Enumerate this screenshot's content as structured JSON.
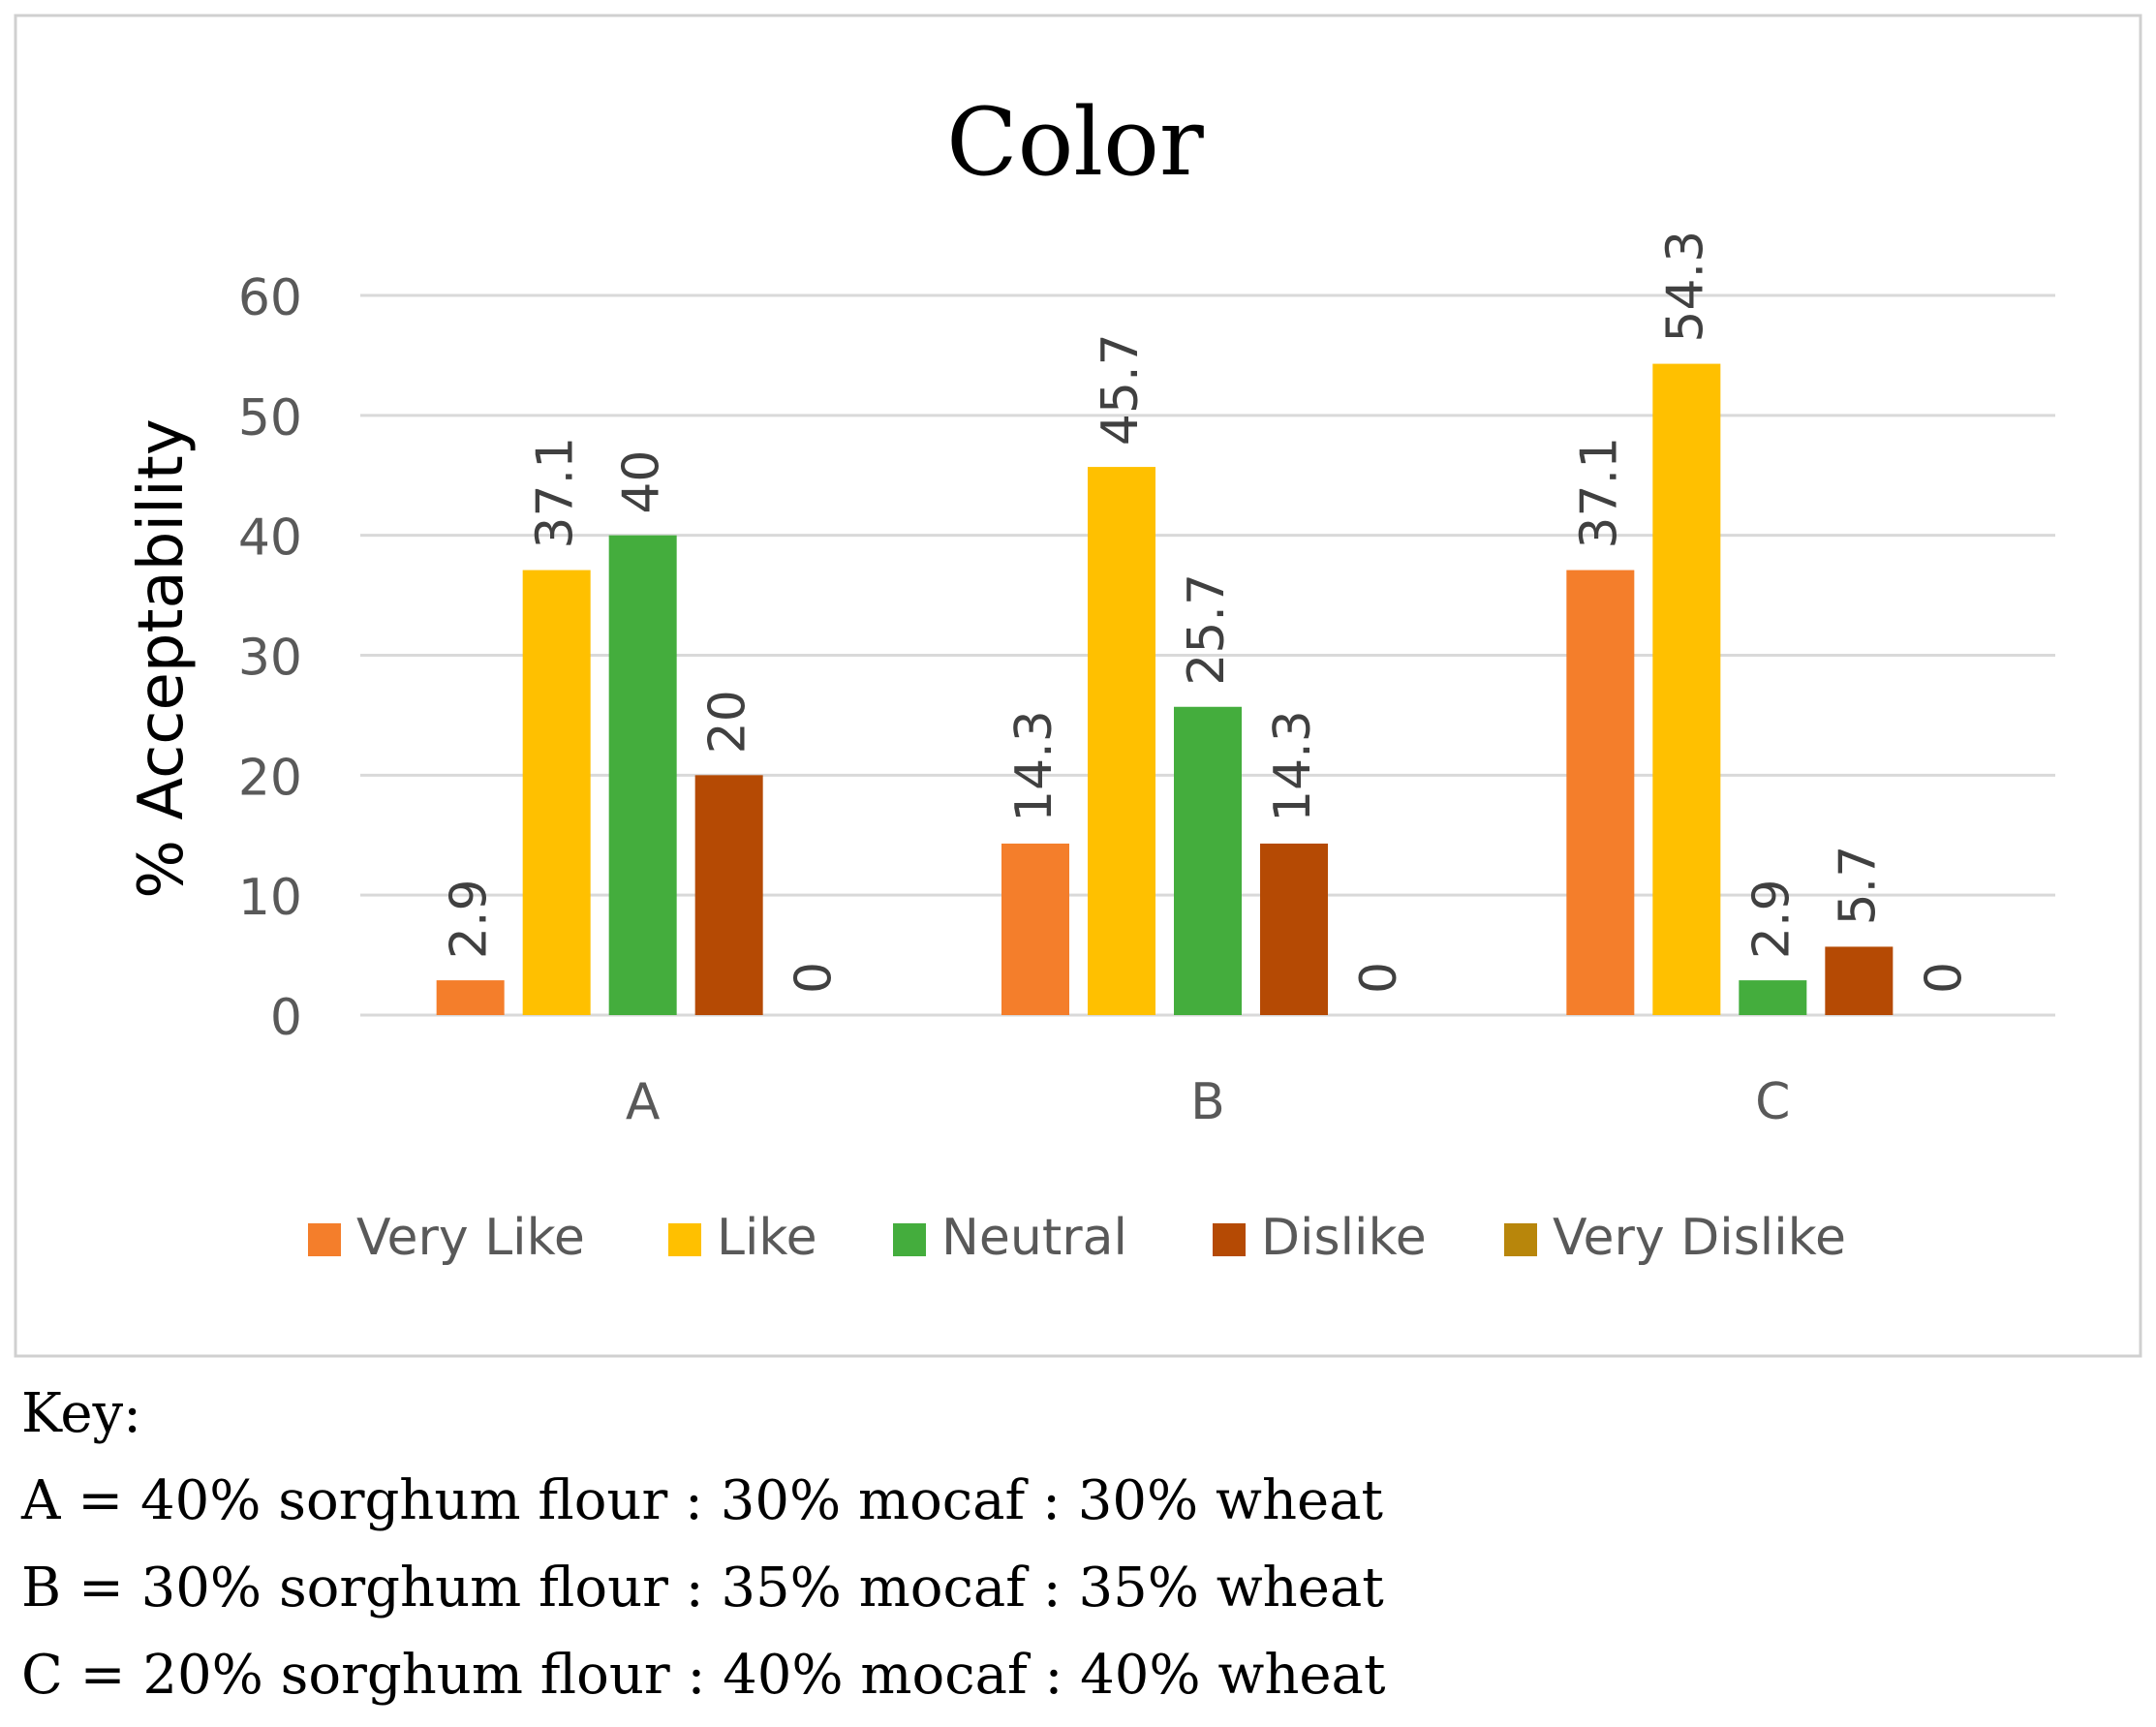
{
  "chart_data": {
    "type": "bar",
    "title": "Color",
    "xlabel": "",
    "ylabel": "% Acceptability",
    "ylim": [
      0,
      60
    ],
    "yticks": [
      0,
      10,
      20,
      30,
      40,
      50,
      60
    ],
    "grid": true,
    "legend_position": "bottom",
    "categories": [
      "A",
      "B",
      "C"
    ],
    "series": [
      {
        "name": "Very Like",
        "color": "#F47E2B",
        "values": [
          2.9,
          14.3,
          37.1
        ],
        "labels": [
          "2.9",
          "14.3",
          "37.1"
        ]
      },
      {
        "name": "Like",
        "color": "#FFC000",
        "values": [
          37.1,
          45.7,
          54.3
        ],
        "labels": [
          "37.1",
          "45.7",
          "54.3"
        ]
      },
      {
        "name": "Neutral",
        "color": "#44AD3D",
        "values": [
          40,
          25.7,
          2.9
        ],
        "labels": [
          "40",
          "25.7",
          "2.9"
        ]
      },
      {
        "name": "Dislike",
        "color": "#B54A04",
        "values": [
          20,
          14.3,
          5.7
        ],
        "labels": [
          "20",
          "14.3",
          "5.7"
        ]
      },
      {
        "name": "Very Dislike",
        "color": "#B8860B",
        "values": [
          0,
          0,
          0
        ],
        "labels": [
          "0",
          "0",
          "0"
        ]
      }
    ]
  },
  "key": {
    "heading": "Key:",
    "lines": [
      "A = 40% sorghum flour : 30% mocaf : 30% wheat",
      "B = 30% sorghum flour : 35% mocaf : 35% wheat",
      "C = 20% sorghum flour : 40% mocaf : 40% wheat"
    ]
  }
}
